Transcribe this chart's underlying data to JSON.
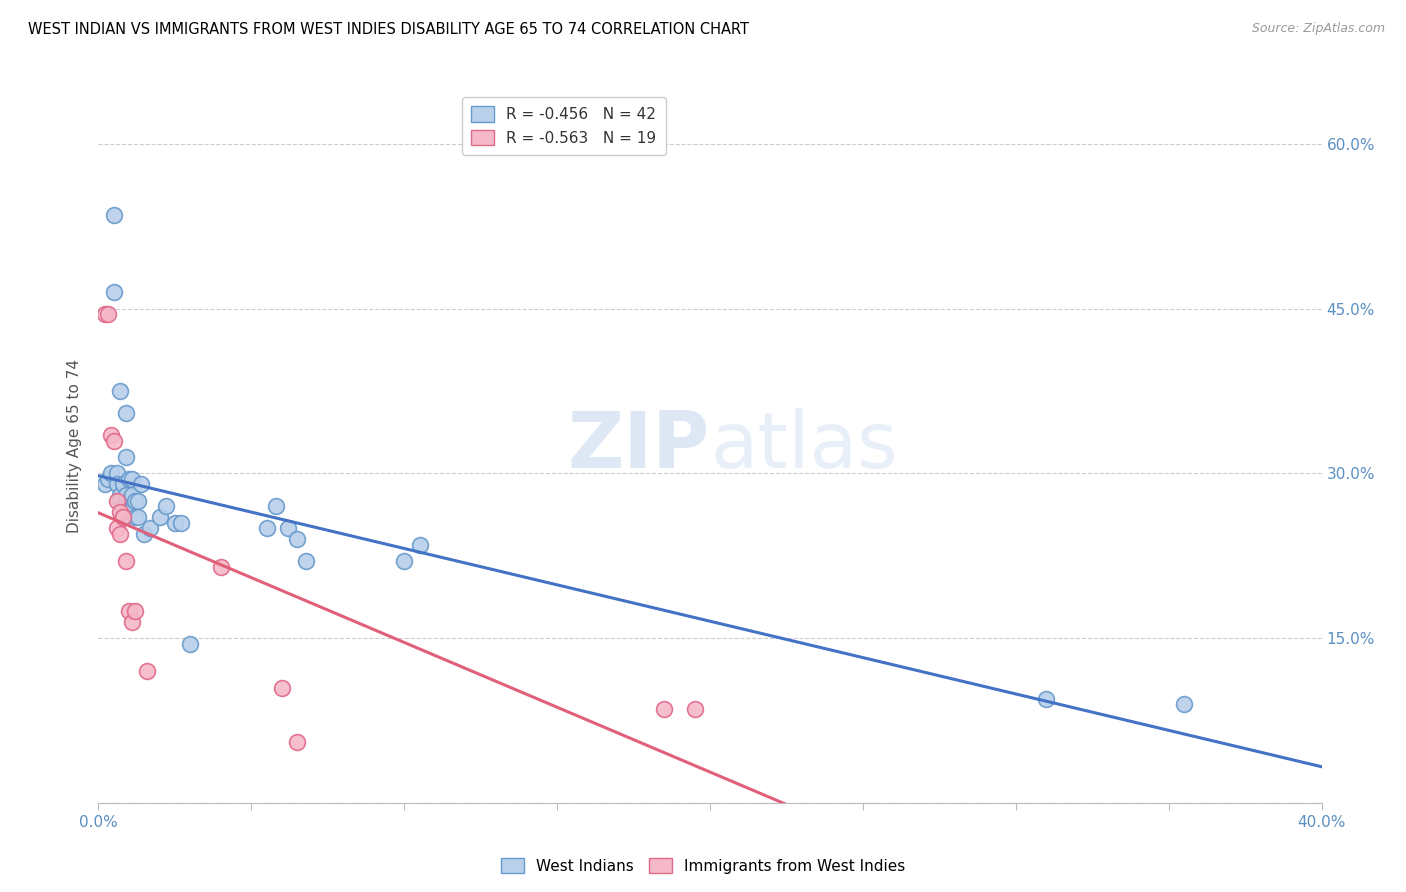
{
  "title": "WEST INDIAN VS IMMIGRANTS FROM WEST INDIES DISABILITY AGE 65 TO 74 CORRELATION CHART",
  "source": "Source: ZipAtlas.com",
  "ylabel": "Disability Age 65 to 74",
  "xlim": [
    0.0,
    0.4
  ],
  "ylim": [
    0.0,
    0.65
  ],
  "xtick_positions": [
    0.0,
    0.05,
    0.1,
    0.15,
    0.2,
    0.25,
    0.3,
    0.35,
    0.4
  ],
  "xtick_labels": [
    "0.0%",
    "",
    "",
    "",
    "",
    "",
    "",
    "",
    "40.0%"
  ],
  "ytick_positions": [
    0.0,
    0.15,
    0.3,
    0.45,
    0.6
  ],
  "ytick_labels_right": [
    "",
    "15.0%",
    "30.0%",
    "45.0%",
    "60.0%"
  ],
  "west_indian_color": "#b8d0ea",
  "west_indian_edge_color": "#6699cc",
  "immigrant_color": "#f5b8c8",
  "immigrant_edge_color": "#e06888",
  "trend_blue": "#4472c4",
  "trend_pink": "#e0607a",
  "legend_r1": "R = -0.456",
  "legend_n1": "N = 42",
  "legend_r2": "R = -0.563",
  "legend_n2": "N = 19",
  "west_indian_x": [
    0.002,
    0.003,
    0.004,
    0.005,
    0.005,
    0.006,
    0.006,
    0.007,
    0.007,
    0.007,
    0.008,
    0.008,
    0.008,
    0.008,
    0.009,
    0.009,
    0.009,
    0.01,
    0.01,
    0.011,
    0.011,
    0.012,
    0.012,
    0.013,
    0.013,
    0.014,
    0.015,
    0.017,
    0.02,
    0.022,
    0.025,
    0.027,
    0.03,
    0.055,
    0.058,
    0.062,
    0.065,
    0.068,
    0.1,
    0.105,
    0.31,
    0.355
  ],
  "west_indian_y": [
    0.29,
    0.295,
    0.3,
    0.535,
    0.465,
    0.3,
    0.29,
    0.375,
    0.28,
    0.275,
    0.29,
    0.27,
    0.265,
    0.26,
    0.355,
    0.315,
    0.28,
    0.295,
    0.265,
    0.295,
    0.28,
    0.275,
    0.26,
    0.275,
    0.26,
    0.29,
    0.245,
    0.25,
    0.26,
    0.27,
    0.255,
    0.255,
    0.145,
    0.25,
    0.27,
    0.25,
    0.24,
    0.22,
    0.22,
    0.235,
    0.095,
    0.09
  ],
  "immigrant_x": [
    0.002,
    0.003,
    0.004,
    0.005,
    0.006,
    0.006,
    0.007,
    0.007,
    0.008,
    0.009,
    0.01,
    0.011,
    0.012,
    0.016,
    0.06,
    0.065,
    0.185,
    0.195,
    0.04
  ],
  "immigrant_y": [
    0.445,
    0.445,
    0.335,
    0.33,
    0.275,
    0.25,
    0.265,
    0.245,
    0.26,
    0.22,
    0.175,
    0.165,
    0.175,
    0.12,
    0.105,
    0.055,
    0.085,
    0.085,
    0.215
  ],
  "watermark": "ZIPatlas",
  "figsize": [
    14.06,
    8.92
  ],
  "dpi": 100
}
